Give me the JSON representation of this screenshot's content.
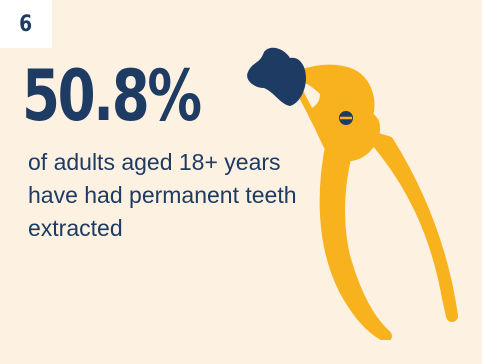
{
  "badge": {
    "number": "6"
  },
  "stat": {
    "value": "50.8%",
    "description": "of adults aged 18+ years have had permanent teeth extracted"
  },
  "illustration": {
    "icon": "dental-forceps-with-tooth-icon",
    "tool_color": "#f7b21d",
    "tooth_color": "#1d3b63"
  },
  "colors": {
    "background": "#fdf1e1",
    "text": "#1d3b63",
    "badge_background": "#ffffff"
  }
}
